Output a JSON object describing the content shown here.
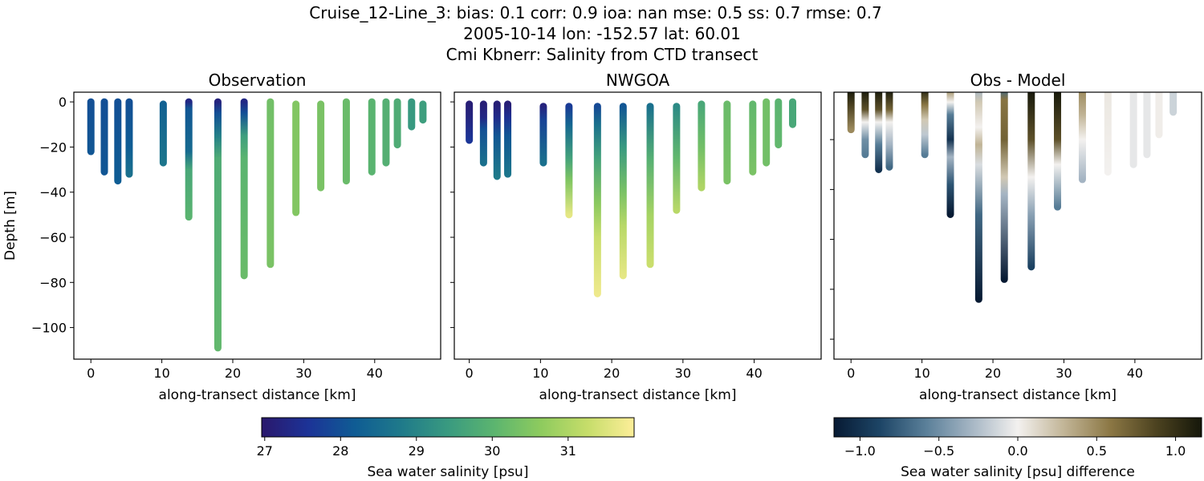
{
  "title_lines": [
    "Cruise_12-Line_3: bias: 0.1  corr: 0.9  ioa: nan  mse: 0.5  ss: 0.7  rmse: 0.7",
    "2005-10-14 lon: -152.57 lat: 60.01",
    "Cmi Kbnerr: Salinity from CTD transect"
  ],
  "chart_data": [
    {
      "type": "scatter",
      "title": "Observation",
      "xlabel": "along-transect distance [km]",
      "ylabel": "Depth [m]",
      "xlim": [
        -2.4,
        49.3
      ],
      "ylim": [
        -114,
        4.3
      ],
      "xticks": [
        0,
        10,
        20,
        30,
        40
      ],
      "yticks": [
        0,
        -20,
        -40,
        -60,
        -80,
        -100
      ],
      "ytick_labels": [
        "0",
        "−20",
        "−40",
        "−60",
        "−80",
        "−100"
      ],
      "colormap": "haline",
      "casts": [
        {
          "x": 0,
          "top": 0,
          "bottom": 22,
          "profile": [
            [
              0,
              28.0
            ],
            [
              22,
              28.1
            ]
          ]
        },
        {
          "x": 1.9,
          "top": 0,
          "bottom": 31,
          "profile": [
            [
              0,
              28.0
            ],
            [
              31,
              28.1
            ]
          ]
        },
        {
          "x": 3.8,
          "top": 0,
          "bottom": 35,
          "profile": [
            [
              0,
              28.0
            ],
            [
              35,
              28.2
            ]
          ]
        },
        {
          "x": 5.4,
          "top": 0,
          "bottom": 32,
          "profile": [
            [
              0,
              28.0
            ],
            [
              20,
              28.2
            ],
            [
              32,
              28.6
            ]
          ]
        },
        {
          "x": 10.2,
          "top": 1,
          "bottom": 27,
          "profile": [
            [
              1,
              28.3
            ],
            [
              27,
              28.7
            ]
          ]
        },
        {
          "x": 13.8,
          "top": 0,
          "bottom": 51,
          "profile": [
            [
              0,
              27.3
            ],
            [
              3,
              28.1
            ],
            [
              22,
              28.5
            ],
            [
              30,
              29.7
            ],
            [
              51,
              30.0
            ]
          ]
        },
        {
          "x": 17.9,
          "top": 0,
          "bottom": 109,
          "profile": [
            [
              0,
              27.2
            ],
            [
              5,
              28.0
            ],
            [
              15,
              28.9
            ],
            [
              25,
              29.8
            ],
            [
              109,
              30.1
            ]
          ]
        },
        {
          "x": 21.6,
          "top": 0,
          "bottom": 77,
          "profile": [
            [
              0,
              27.3
            ],
            [
              5,
              28.0
            ],
            [
              15,
              29.5
            ],
            [
              25,
              30.0
            ],
            [
              77,
              30.2
            ]
          ]
        },
        {
          "x": 25.3,
          "top": 0,
          "bottom": 72,
          "profile": [
            [
              0,
              30.3
            ],
            [
              72,
              30.4
            ]
          ]
        },
        {
          "x": 28.9,
          "top": 1,
          "bottom": 49,
          "profile": [
            [
              1,
              30.5
            ],
            [
              49,
              30.5
            ]
          ]
        },
        {
          "x": 32.4,
          "top": 1,
          "bottom": 38,
          "profile": [
            [
              1,
              30.4
            ],
            [
              38,
              30.4
            ]
          ]
        },
        {
          "x": 36.0,
          "top": 0,
          "bottom": 35,
          "profile": [
            [
              0,
              30.2
            ],
            [
              35,
              30.2
            ]
          ]
        },
        {
          "x": 39.6,
          "top": 0,
          "bottom": 31,
          "profile": [
            [
              0,
              30.0
            ],
            [
              31,
              30.0
            ]
          ]
        },
        {
          "x": 41.6,
          "top": 0,
          "bottom": 27,
          "profile": [
            [
              0,
              29.9
            ],
            [
              27,
              29.9
            ]
          ]
        },
        {
          "x": 43.2,
          "top": 0,
          "bottom": 19,
          "profile": [
            [
              0,
              29.8
            ],
            [
              19,
              29.8
            ]
          ]
        },
        {
          "x": 45.2,
          "top": 0,
          "bottom": 11,
          "profile": [
            [
              0,
              29.4
            ],
            [
              11,
              29.4
            ]
          ]
        },
        {
          "x": 46.8,
          "top": 1,
          "bottom": 8,
          "profile": [
            [
              1,
              29.5
            ],
            [
              8,
              29.5
            ]
          ]
        }
      ]
    },
    {
      "type": "scatter",
      "title": "NWGOA",
      "xlabel": "along-transect distance [km]",
      "xlim": [
        -2.1,
        49.4
      ],
      "ylim": [
        -114,
        4.3
      ],
      "xticks": [
        0,
        10,
        20,
        30,
        40
      ],
      "colormap": "haline",
      "casts": [
        {
          "x": 0,
          "top": 1,
          "bottom": 17,
          "profile": [
            [
              1,
              27.1
            ],
            [
              6,
              27.2
            ],
            [
              17,
              27.6
            ]
          ]
        },
        {
          "x": 2.0,
          "top": 1,
          "bottom": 27,
          "profile": [
            [
              1,
              27.1
            ],
            [
              7,
              27.3
            ],
            [
              12,
              28.0
            ],
            [
              27,
              28.6
            ]
          ]
        },
        {
          "x": 3.9,
          "top": 1,
          "bottom": 33,
          "profile": [
            [
              1,
              27.1
            ],
            [
              7,
              27.4
            ],
            [
              15,
              28.1
            ],
            [
              33,
              28.8
            ]
          ]
        },
        {
          "x": 5.4,
          "top": 1,
          "bottom": 32,
          "profile": [
            [
              1,
              27.1
            ],
            [
              7,
              27.5
            ],
            [
              15,
              28.1
            ],
            [
              32,
              28.7
            ]
          ]
        },
        {
          "x": 10.4,
          "top": 2,
          "bottom": 27,
          "profile": [
            [
              2,
              27.2
            ],
            [
              8,
              27.8
            ],
            [
              27,
              28.6
            ]
          ]
        },
        {
          "x": 14.0,
          "top": 2,
          "bottom": 50,
          "profile": [
            [
              2,
              27.7
            ],
            [
              10,
              28.4
            ],
            [
              25,
              29.6
            ],
            [
              35,
              30.5
            ],
            [
              50,
              31.6
            ]
          ]
        },
        {
          "x": 18.0,
          "top": 2,
          "bottom": 85,
          "profile": [
            [
              2,
              27.9
            ],
            [
              10,
              28.6
            ],
            [
              25,
              29.6
            ],
            [
              45,
              30.6
            ],
            [
              60,
              31.3
            ],
            [
              85,
              31.7
            ]
          ]
        },
        {
          "x": 21.6,
          "top": 2,
          "bottom": 77,
          "profile": [
            [
              2,
              28.1
            ],
            [
              20,
              29.4
            ],
            [
              40,
              30.4
            ],
            [
              55,
              31.1
            ],
            [
              77,
              31.6
            ]
          ]
        },
        {
          "x": 25.4,
          "top": 2,
          "bottom": 72,
          "profile": [
            [
              2,
              28.6
            ],
            [
              25,
              29.9
            ],
            [
              50,
              30.9
            ],
            [
              72,
              31.3
            ]
          ]
        },
        {
          "x": 29.1,
          "top": 2,
          "bottom": 48,
          "profile": [
            [
              2,
              29.1
            ],
            [
              25,
              30.1
            ],
            [
              48,
              31.1
            ]
          ]
        },
        {
          "x": 32.6,
          "top": 1,
          "bottom": 38,
          "profile": [
            [
              1,
              29.7
            ],
            [
              20,
              30.3
            ],
            [
              38,
              31.0
            ]
          ]
        },
        {
          "x": 36.2,
          "top": 1,
          "bottom": 35,
          "profile": [
            [
              1,
              30.2
            ],
            [
              35,
              30.4
            ]
          ]
        },
        {
          "x": 39.8,
          "top": 1,
          "bottom": 31,
          "profile": [
            [
              1,
              30.1
            ],
            [
              31,
              30.4
            ]
          ]
        },
        {
          "x": 41.7,
          "top": 0,
          "bottom": 27,
          "profile": [
            [
              0,
              30.3
            ],
            [
              27,
              30.3
            ]
          ]
        },
        {
          "x": 43.4,
          "top": 0,
          "bottom": 19,
          "profile": [
            [
              0,
              30.0
            ],
            [
              19,
              30.1
            ]
          ]
        },
        {
          "x": 45.4,
          "top": 0,
          "bottom": 10,
          "profile": [
            [
              0,
              29.7
            ],
            [
              10,
              29.7
            ]
          ]
        }
      ]
    },
    {
      "type": "scatter",
      "title": "Obs - Model",
      "xlabel": "along-transect distance [km]",
      "xlim": [
        -2.4,
        49.4
      ],
      "ylim": [
        -108,
        -1
      ],
      "xticks": [
        0,
        10,
        20,
        30,
        40
      ],
      "colormap": "diff",
      "casts": [
        {
          "x": 0,
          "top": 0,
          "bottom": 16,
          "profile": [
            [
              0,
              1.2
            ],
            [
              6,
              0.9
            ],
            [
              16,
              0.5
            ]
          ]
        },
        {
          "x": 2.0,
          "top": 0,
          "bottom": 26,
          "profile": [
            [
              0,
              1.3
            ],
            [
              8,
              0.8
            ],
            [
              13,
              0.0
            ],
            [
              20,
              -0.5
            ],
            [
              26,
              -0.6
            ]
          ]
        },
        {
          "x": 3.9,
          "top": 0,
          "bottom": 32,
          "profile": [
            [
              0,
              1.4
            ],
            [
              8,
              0.8
            ],
            [
              13,
              0.0
            ],
            [
              22,
              -0.6
            ],
            [
              32,
              -1.0
            ]
          ]
        },
        {
          "x": 5.4,
          "top": 0,
          "bottom": 31,
          "profile": [
            [
              0,
              1.3
            ],
            [
              8,
              0.7
            ],
            [
              13,
              0.0
            ],
            [
              22,
              -0.3
            ],
            [
              31,
              -0.7
            ]
          ]
        },
        {
          "x": 10.4,
          "top": 0,
          "bottom": 26,
          "profile": [
            [
              0,
              1.1
            ],
            [
              6,
              0.6
            ],
            [
              12,
              0.2
            ],
            [
              18,
              -0.2
            ],
            [
              26,
              -0.6
            ]
          ]
        },
        {
          "x": 14.0,
          "top": 0,
          "bottom": 50,
          "profile": [
            [
              0,
              0.5
            ],
            [
              5,
              0.0
            ],
            [
              10,
              -0.6
            ],
            [
              20,
              -1.0
            ],
            [
              27,
              -0.3
            ],
            [
              38,
              -0.8
            ],
            [
              50,
              -1.2
            ]
          ]
        },
        {
          "x": 18.0,
          "top": 0,
          "bottom": 84,
          "profile": [
            [
              0,
              -0.3
            ],
            [
              5,
              0.2
            ],
            [
              15,
              0.0
            ],
            [
              22,
              0.3
            ],
            [
              30,
              -0.1
            ],
            [
              50,
              -0.7
            ],
            [
              84,
              -1.35
            ]
          ]
        },
        {
          "x": 21.6,
          "top": 0,
          "bottom": 76,
          "profile": [
            [
              0,
              -0.7
            ],
            [
              4,
              0.6
            ],
            [
              20,
              0.7
            ],
            [
              35,
              0.2
            ],
            [
              42,
              -0.3
            ],
            [
              76,
              -1.2
            ]
          ]
        },
        {
          "x": 25.4,
          "top": 0,
          "bottom": 71,
          "profile": [
            [
              0,
              1.4
            ],
            [
              20,
              0.8
            ],
            [
              35,
              0.0
            ],
            [
              50,
              -0.4
            ],
            [
              71,
              -0.9
            ]
          ]
        },
        {
          "x": 29.1,
          "top": 0,
          "bottom": 47,
          "profile": [
            [
              0,
              1.4
            ],
            [
              20,
              0.8
            ],
            [
              30,
              0.0
            ],
            [
              47,
              -0.6
            ]
          ]
        },
        {
          "x": 32.6,
          "top": 0,
          "bottom": 36,
          "profile": [
            [
              0,
              0.5
            ],
            [
              10,
              0.3
            ],
            [
              20,
              0.0
            ],
            [
              36,
              -0.3
            ]
          ]
        },
        {
          "x": 36.2,
          "top": 0,
          "bottom": 33,
          "profile": [
            [
              0,
              0.05
            ],
            [
              33,
              0.0
            ]
          ]
        },
        {
          "x": 39.8,
          "top": 0,
          "bottom": 30,
          "profile": [
            [
              0,
              -0.05
            ],
            [
              30,
              -0.05
            ]
          ]
        },
        {
          "x": 41.7,
          "top": 0,
          "bottom": 26,
          "profile": [
            [
              0,
              -0.05
            ],
            [
              26,
              -0.05
            ]
          ]
        },
        {
          "x": 43.4,
          "top": 0,
          "bottom": 18,
          "profile": [
            [
              0,
              0.02
            ],
            [
              18,
              0.02
            ]
          ]
        },
        {
          "x": 45.4,
          "top": 0,
          "bottom": 9,
          "profile": [
            [
              0,
              -0.15
            ],
            [
              9,
              -0.15
            ]
          ]
        }
      ]
    }
  ],
  "colorbars": [
    {
      "label": "Sea water salinity [psu]",
      "range": [
        26.96,
        31.87
      ],
      "ticks": [
        27,
        28,
        29,
        30,
        31
      ],
      "tick_labels": [
        "27",
        "28",
        "29",
        "30",
        "31"
      ],
      "colormap": "haline",
      "stops": [
        "#2a186c",
        "#1c3397",
        "#0f5c94",
        "#1f7a8a",
        "#399a80",
        "#5cb56f",
        "#8ecb5e",
        "#c6dd6a",
        "#fdee99"
      ]
    },
    {
      "label": "Sea water salinity [psu] difference",
      "range": [
        -1.165,
        1.165
      ],
      "ticks": [
        -1.0,
        -0.5,
        0.0,
        0.5,
        1.0
      ],
      "tick_labels": [
        "−1.0",
        "−0.5",
        "0.0",
        "0.5",
        "1.0"
      ],
      "colormap": "diff",
      "stops": [
        "#071a33",
        "#1d4566",
        "#5a7f99",
        "#a6b6c4",
        "#f3f1ef",
        "#c2b597",
        "#8c7845",
        "#4d4320",
        "#15170a"
      ]
    }
  ]
}
